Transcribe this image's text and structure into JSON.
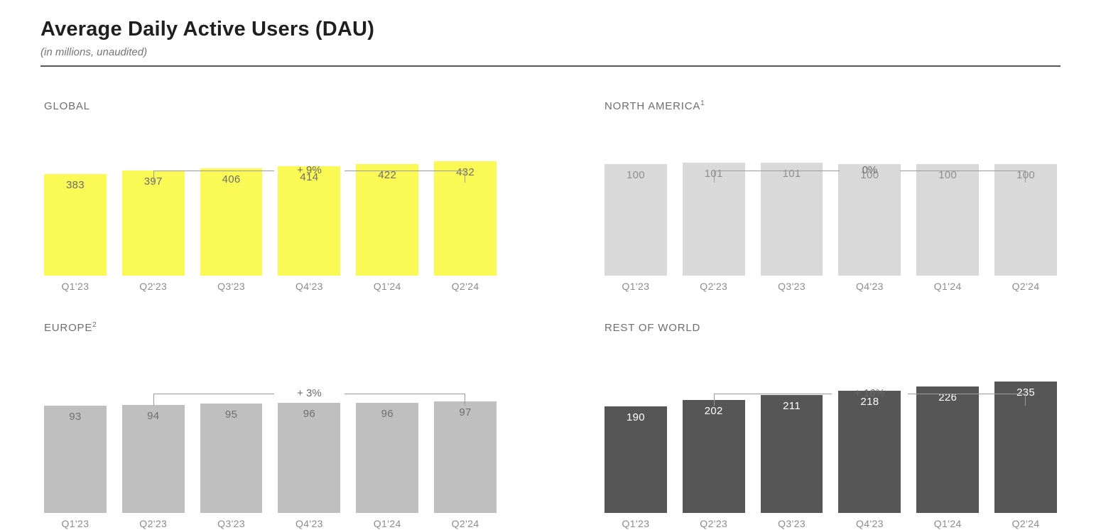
{
  "header": {
    "title": "Average Daily Active Users (DAU)",
    "subtitle": "(in millions, unaudited)"
  },
  "chart_data": [
    {
      "id": "global",
      "type": "bar",
      "title": "GLOBAL",
      "title_superscript": "",
      "annotation": "+ 9%",
      "annotation_note": "year-over-year change, Q2'23 to Q2'24",
      "unit": "millions",
      "categories": [
        "Q1'23",
        "Q2'23",
        "Q3'23",
        "Q4'23",
        "Q1'24",
        "Q2'24"
      ],
      "values": [
        383,
        397,
        406,
        414,
        422,
        432
      ],
      "bar_color": "#FBF955",
      "value_label_color": "#6E6E6E"
    },
    {
      "id": "north-america",
      "type": "bar",
      "title": "NORTH AMERICA",
      "title_superscript": "1",
      "annotation": "0%",
      "annotation_note": "year-over-year change, Q2'23 to Q2'24",
      "unit": "millions",
      "categories": [
        "Q1'23",
        "Q2'23",
        "Q3'23",
        "Q4'23",
        "Q1'24",
        "Q2'24"
      ],
      "values": [
        100,
        101,
        101,
        100,
        100,
        100
      ],
      "bar_color": "#D9D9D9",
      "value_label_color": "#8E8E8E"
    },
    {
      "id": "europe",
      "type": "bar",
      "title": "EUROPE",
      "title_superscript": "2",
      "annotation": "+ 3%",
      "annotation_note": "year-over-year change, Q2'23 to Q2'24",
      "unit": "millions",
      "categories": [
        "Q1'23",
        "Q2'23",
        "Q3'23",
        "Q4'23",
        "Q1'24",
        "Q2'24"
      ],
      "values": [
        93,
        94,
        95,
        96,
        96,
        97
      ],
      "bar_color": "#BFBFBF",
      "value_label_color": "#6F6F6F"
    },
    {
      "id": "rest-of-world",
      "type": "bar",
      "title": "REST OF WORLD",
      "title_superscript": "",
      "annotation": "+ 16%",
      "annotation_note": "year-over-year change, Q2'23 to Q2'24",
      "unit": "millions",
      "categories": [
        "Q1'23",
        "Q2'23",
        "Q3'23",
        "Q4'23",
        "Q1'24",
        "Q2'24"
      ],
      "values": [
        190,
        202,
        211,
        218,
        226,
        235
      ],
      "bar_color": "#565656",
      "value_label_color": "#FFFFFF"
    }
  ]
}
